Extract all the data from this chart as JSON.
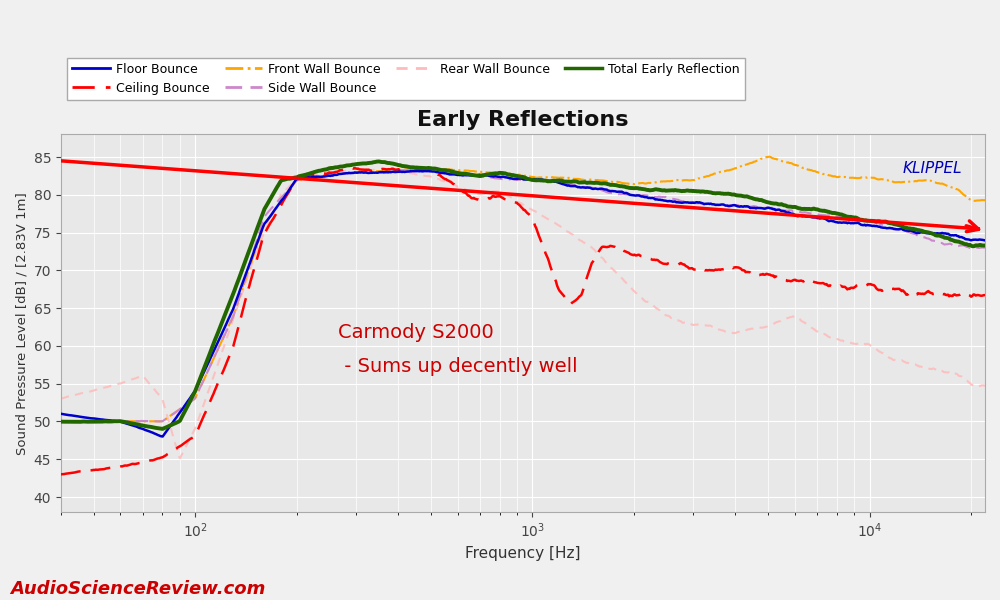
{
  "title": "Early Reflections",
  "xlabel": "Frequency [Hz]",
  "ylabel": "Sound Pressure Level [dB] / [2.83V 1m]",
  "ylim": [
    38,
    88
  ],
  "xlim": [
    40,
    22000
  ],
  "yticks": [
    40,
    45,
    50,
    55,
    60,
    65,
    70,
    75,
    80,
    85
  ],
  "annotation_line1": "Carmody S2000",
  "annotation_line2": " - Sums up decently well",
  "annotation_color": "#cc0000",
  "klippel_text": "KLIPPEL",
  "klippel_color": "#0000bb",
  "asr_text": "AudioScienceReview.com",
  "asr_color": "#cc0000",
  "background_color": "#e8e8e8",
  "grid_color": "#ffffff",
  "series": {
    "floor_bounce": {
      "label": "Floor Bounce",
      "color": "#0000cc",
      "linestyle": "solid",
      "linewidth": 1.8
    },
    "ceiling_bounce": {
      "label": "Ceiling Bounce",
      "color": "#ff0000",
      "linestyle": "dashed",
      "linewidth": 1.8
    },
    "front_wall_bounce": {
      "label": "Front Wall Bounce",
      "color": "#ffa500",
      "linestyle": "dashdot",
      "linewidth": 1.5
    },
    "side_wall_bounce": {
      "label": "Side Wall Bounce",
      "color": "#cc88cc",
      "linestyle": "dashed",
      "linewidth": 1.5
    },
    "rear_wall_bounce": {
      "label": "Rear Wall Bounce",
      "color": "#ffbbbb",
      "linestyle": "dashed",
      "linewidth": 1.5
    },
    "total_early_reflection": {
      "label": "Total Early Reflection",
      "color": "#226600",
      "linestyle": "solid",
      "linewidth": 2.8
    },
    "ref_line": {
      "color": "#ff0000",
      "linewidth": 2.0
    }
  }
}
